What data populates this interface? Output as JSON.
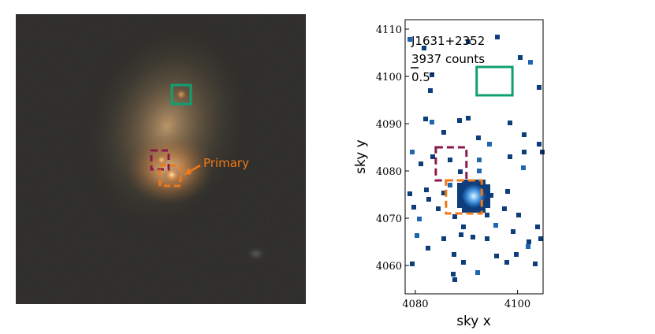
{
  "left_panel": {
    "primary_label": "Primary",
    "colors": {
      "green_box": "#10a070",
      "red_box": "#8a1a4a",
      "orange_box": "#f07818"
    }
  },
  "right_panel": {
    "annotation": {
      "name": "J1631+2352",
      "counts": "3937 counts",
      "scale": "0.5″"
    },
    "colors": {
      "pixels_dark": "#0d3d7a",
      "pixels_mid": "#1f66b0",
      "pixels_bright": "#b9e1ff",
      "green_box": "#10a070",
      "red_box": "#8a1a4a",
      "orange_box": "#f07818"
    }
  },
  "chart_data": {
    "type": "heatmap",
    "xlabel": "sky x",
    "ylabel": "sky y",
    "xlim": [
      4078,
      4105
    ],
    "ylim": [
      4054,
      4112
    ],
    "x_ticks": [
      "4080",
      "4100"
    ],
    "y_ticks": [
      "4060",
      "4070",
      "4080",
      "4090",
      "4100",
      "4110"
    ],
    "grid": false,
    "boxes": [
      {
        "color": "green",
        "x": [
          4092,
          4099
        ],
        "y": [
          4096,
          4102
        ]
      },
      {
        "color": "red",
        "x": [
          4084,
          4090
        ],
        "y": [
          4078,
          4085
        ]
      },
      {
        "color": "orange",
        "x": [
          4086,
          4093
        ],
        "y": [
          4071,
          4078
        ]
      }
    ]
  }
}
